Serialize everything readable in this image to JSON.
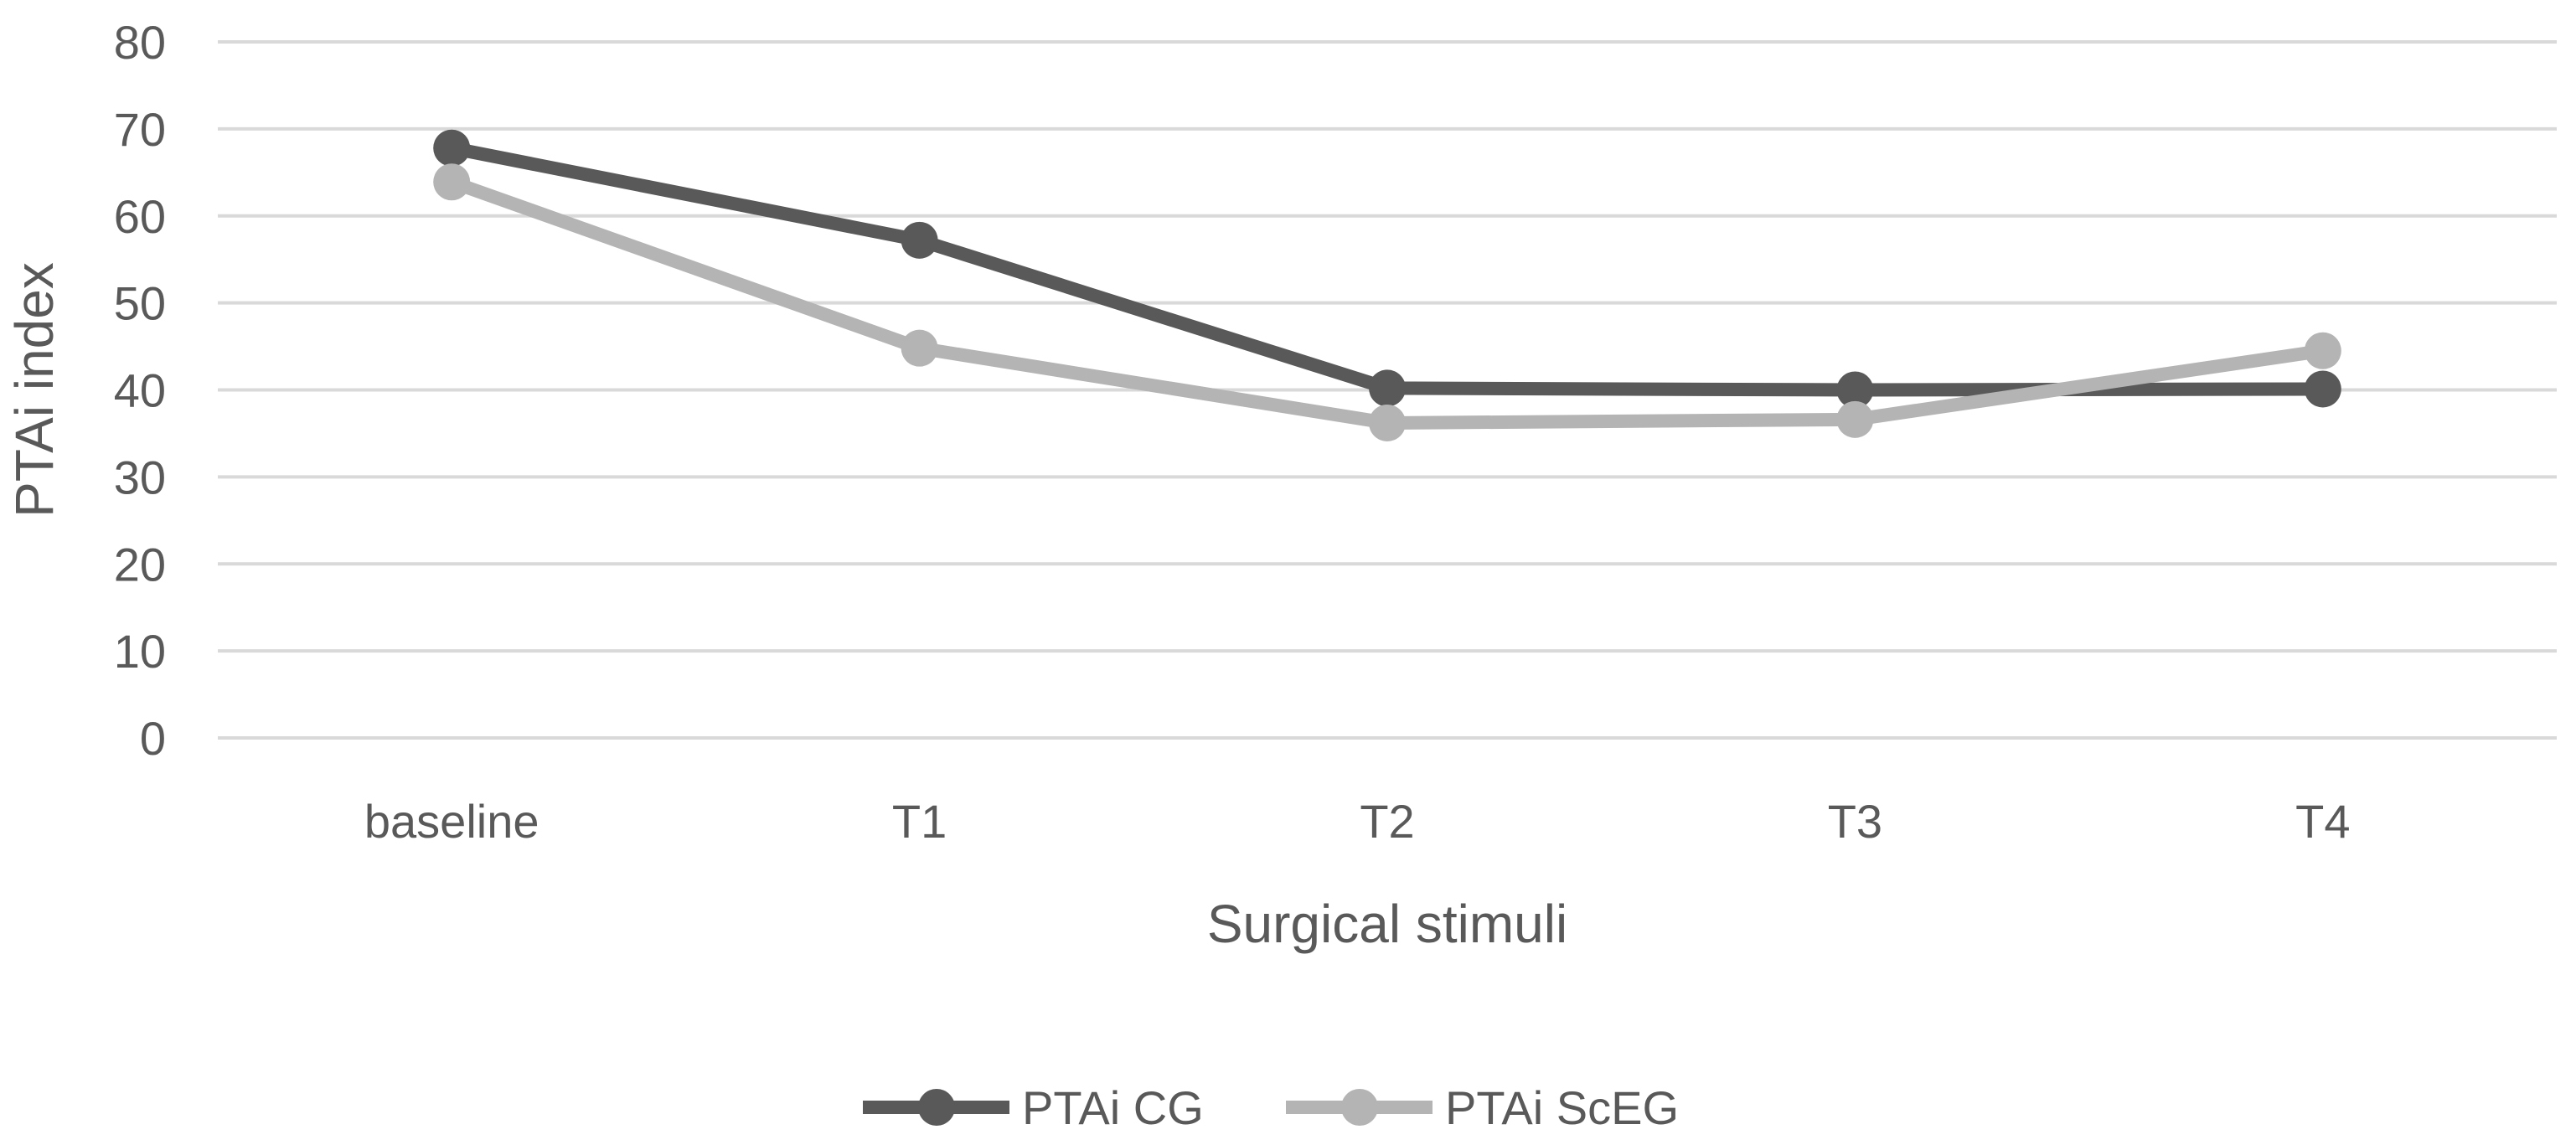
{
  "chart_data": {
    "type": "line",
    "title": "",
    "xlabel": "Surgical stimuli",
    "ylabel": "PTAi index",
    "categories": [
      "baseline",
      "T1",
      "T2",
      "T3",
      "T4"
    ],
    "ylim": [
      0,
      80
    ],
    "yticks": [
      0,
      10,
      20,
      30,
      40,
      50,
      60,
      70,
      80
    ],
    "grid": true,
    "legend_position": "bottom",
    "series": [
      {
        "name": "PTAi CG",
        "color": "#595959",
        "values": [
          67.8,
          57.2,
          40.2,
          40.0,
          40.1
        ]
      },
      {
        "name": "PTAi ScEG",
        "color": "#b4b4b4",
        "values": [
          63.9,
          44.8,
          36.2,
          36.6,
          44.5
        ]
      }
    ]
  }
}
